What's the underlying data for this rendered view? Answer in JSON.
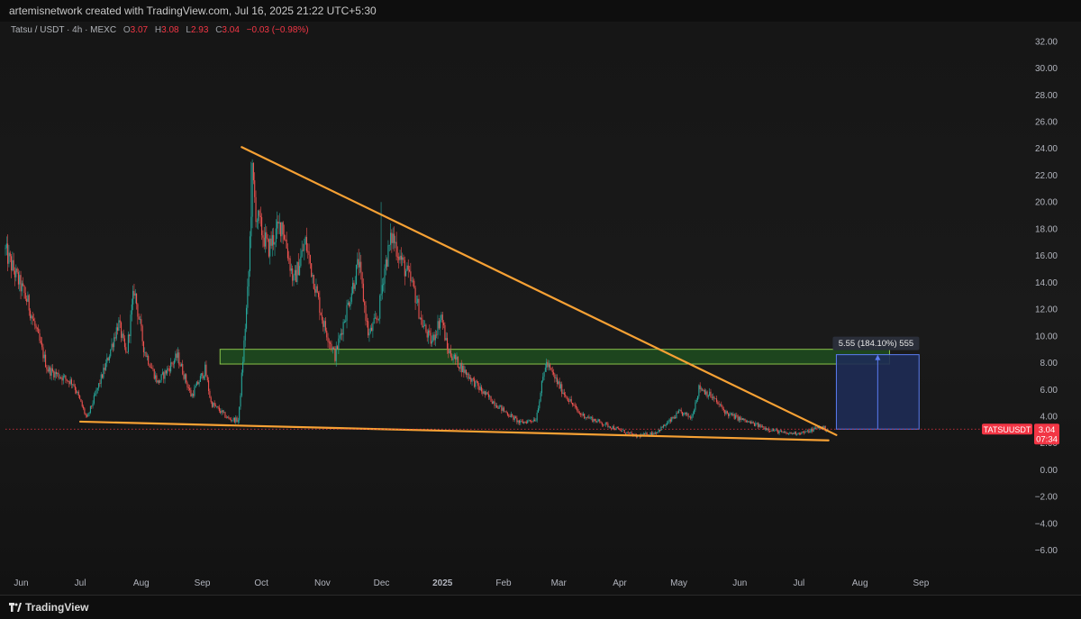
{
  "header": {
    "credit": "artemisnetwork created with TradingView.com, Jul 16, 2025 21:22 UTC+5:30"
  },
  "legend": {
    "symbol": "Tatsu / USDT · 4h · MEXC",
    "open_label": "O",
    "open": "3.07",
    "high_label": "H",
    "high": "3.08",
    "low_label": "L",
    "low": "2.93",
    "close_label": "C",
    "close": "3.04",
    "change": "−0.03 (−0.98%)"
  },
  "footer": {
    "brand": "TradingView"
  },
  "colors": {
    "candle_up": "#26a69a",
    "candle_down": "#ef5350",
    "trendline": "#f7a134",
    "zone_fill": "#1f4d20",
    "zone_stroke": "#8bc34a",
    "measure_fill": "#1e2b55",
    "measure_stroke": "#5b7cf2",
    "price_tag": "#f23645"
  },
  "chart_data": {
    "type": "candlestick",
    "symbol": "Tatsu / USDT",
    "interval": "4h",
    "exchange": "MEXC",
    "y_axis": {
      "ticks": [
        "32.00",
        "30.00",
        "28.00",
        "26.00",
        "24.00",
        "22.00",
        "20.00",
        "18.00",
        "16.00",
        "14.00",
        "12.00",
        "10.00",
        "8.00",
        "6.00",
        "4.00",
        "2.00",
        "0.00",
        "−2.00",
        "−4.00",
        "−6.00"
      ],
      "range": [
        -6.9,
        33.2
      ]
    },
    "x_axis": {
      "ticks": [
        {
          "label": "Jun",
          "date": "2024-06-01"
        },
        {
          "label": "Jul",
          "date": "2024-07-01"
        },
        {
          "label": "Aug",
          "date": "2024-08-01"
        },
        {
          "label": "Sep",
          "date": "2024-09-01"
        },
        {
          "label": "Oct",
          "date": "2024-10-01"
        },
        {
          "label": "Nov",
          "date": "2024-11-01"
        },
        {
          "label": "Dec",
          "date": "2024-12-01"
        },
        {
          "label": "2025",
          "date": "2025-01-01"
        },
        {
          "label": "Feb",
          "date": "2025-02-01"
        },
        {
          "label": "Mar",
          "date": "2025-03-01"
        },
        {
          "label": "Apr",
          "date": "2025-04-01"
        },
        {
          "label": "May",
          "date": "2025-05-01"
        },
        {
          "label": "Jun",
          "date": "2025-06-01"
        },
        {
          "label": "Jul",
          "date": "2025-07-01"
        },
        {
          "label": "Aug",
          "date": "2025-08-01"
        },
        {
          "label": "Sep",
          "date": "2025-09-01"
        }
      ],
      "range": [
        "2024-05-24",
        "2025-10-01"
      ]
    },
    "series": [
      {
        "kind": "price_path",
        "points": [
          [
            "2024-05-24",
            16.5
          ],
          [
            "2024-06-05",
            12.5
          ],
          [
            "2024-06-15",
            7.5
          ],
          [
            "2024-06-28",
            6.5
          ],
          [
            "2024-07-05",
            3.8
          ],
          [
            "2024-07-15",
            8.0
          ],
          [
            "2024-07-21",
            11.0
          ],
          [
            "2024-07-25",
            8.5
          ],
          [
            "2024-07-29",
            13.5
          ],
          [
            "2024-08-03",
            9.0
          ],
          [
            "2024-08-10",
            6.5
          ],
          [
            "2024-08-20",
            8.5
          ],
          [
            "2024-08-27",
            5.5
          ],
          [
            "2024-09-03",
            7.5
          ],
          [
            "2024-09-06",
            5.0
          ],
          [
            "2024-09-15",
            3.8
          ],
          [
            "2024-09-20",
            3.7
          ],
          [
            "2024-09-25",
            14.0
          ],
          [
            "2024-09-27",
            22.0
          ],
          [
            "2024-09-29",
            19.0
          ],
          [
            "2024-10-05",
            16.5
          ],
          [
            "2024-10-12",
            18.5
          ],
          [
            "2024-10-18",
            14.0
          ],
          [
            "2024-10-24",
            17.0
          ],
          [
            "2024-11-02",
            11.0
          ],
          [
            "2024-11-08",
            8.5
          ],
          [
            "2024-11-14",
            12.0
          ],
          [
            "2024-11-20",
            15.5
          ],
          [
            "2024-11-25",
            10.0
          ],
          [
            "2024-11-30",
            11.5
          ],
          [
            "2024-12-03",
            15.0
          ],
          [
            "2024-12-07",
            17.5
          ],
          [
            "2024-12-12",
            15.5
          ],
          [
            "2024-12-18",
            13.5
          ],
          [
            "2024-12-22",
            11.0
          ],
          [
            "2024-12-27",
            9.5
          ],
          [
            "2025-01-01",
            11.5
          ],
          [
            "2025-01-04",
            9.0
          ],
          [
            "2025-01-12",
            7.5
          ],
          [
            "2025-01-22",
            5.8
          ],
          [
            "2025-02-01",
            4.5
          ],
          [
            "2025-02-10",
            3.5
          ],
          [
            "2025-02-18",
            3.8
          ],
          [
            "2025-02-23",
            8.0
          ],
          [
            "2025-03-03",
            6.0
          ],
          [
            "2025-03-12",
            4.2
          ],
          [
            "2025-03-20",
            3.7
          ],
          [
            "2025-04-01",
            3.0
          ],
          [
            "2025-04-10",
            2.5
          ],
          [
            "2025-04-20",
            2.8
          ],
          [
            "2025-04-26",
            3.5
          ],
          [
            "2025-05-02",
            4.3
          ],
          [
            "2025-05-08",
            3.9
          ],
          [
            "2025-05-12",
            6.2
          ],
          [
            "2025-05-18",
            5.5
          ],
          [
            "2025-05-26",
            4.2
          ],
          [
            "2025-06-05",
            3.6
          ],
          [
            "2025-06-15",
            3.1
          ],
          [
            "2025-06-25",
            2.7
          ],
          [
            "2025-07-05",
            2.8
          ],
          [
            "2025-07-12",
            3.2
          ],
          [
            "2025-07-16",
            3.04
          ]
        ]
      }
    ],
    "price_extremes": [
      {
        "date": "2024-09-26",
        "price": 23.0
      },
      {
        "date": "2024-12-01",
        "price": 20.0
      }
    ],
    "annotations": {
      "descending_trendline": {
        "from": [
          "2024-09-21",
          24.1
        ],
        "to": [
          "2025-07-20",
          2.6
        ]
      },
      "support_trendline": {
        "from": [
          "2024-07-01",
          3.6
        ],
        "to": [
          "2025-07-16",
          2.2
        ]
      },
      "supply_zone": {
        "from": "2024-09-10",
        "to": "2025-08-16",
        "price_top": 9.0,
        "price_bottom": 7.9
      },
      "target_box": {
        "from": "2025-07-20",
        "to": "2025-08-31",
        "price_top": 8.6,
        "price_bottom": 3.04,
        "label": "5.55 (184.10%) 555"
      }
    },
    "current_price": {
      "symbol": "TATSUUSDT",
      "value": "3.04",
      "countdown": "07:34"
    },
    "grid": false,
    "legend_position": "top-left"
  }
}
